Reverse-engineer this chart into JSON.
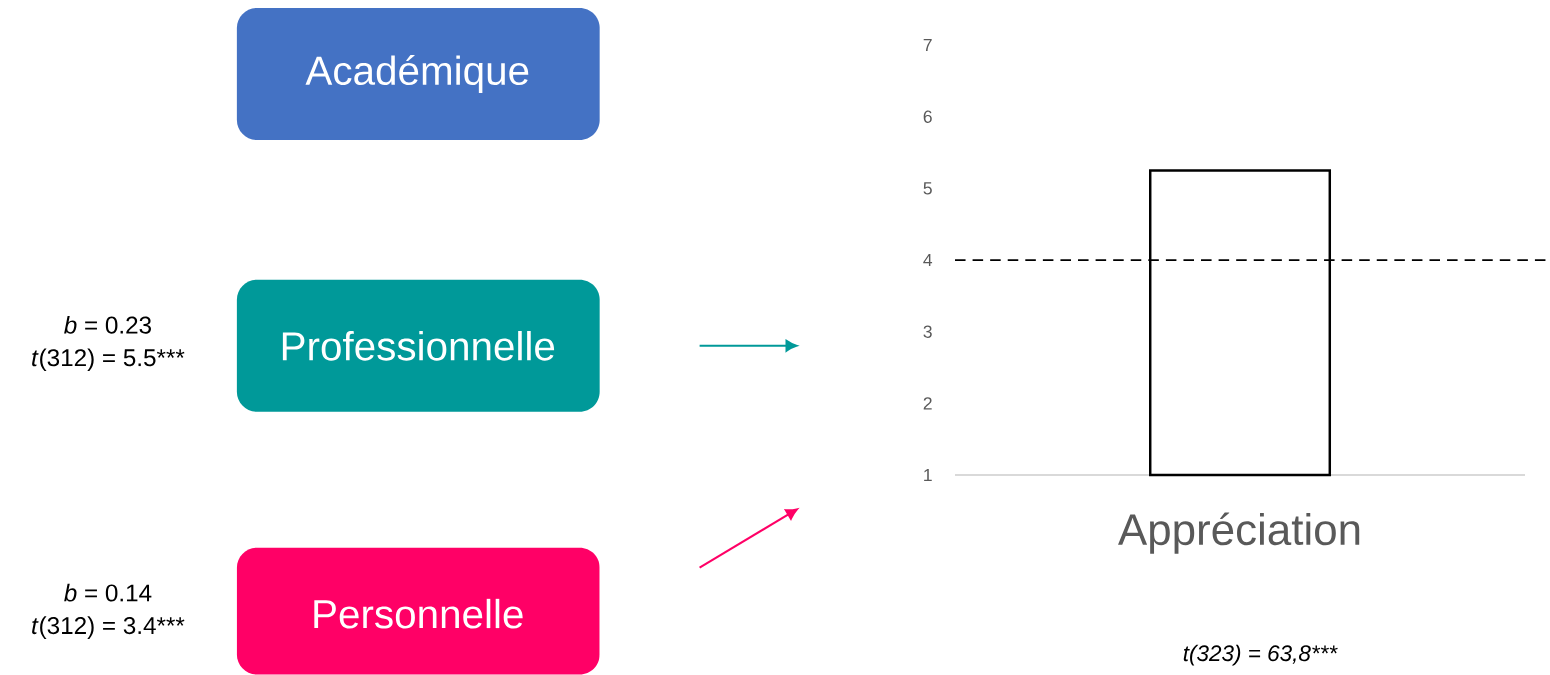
{
  "chart_data": [
    {
      "type": "other",
      "categories": [
        "Académique",
        "Professionnelle",
        "Personnelle"
      ],
      "colors": [
        "#4472c4",
        "#009999",
        "#ff0066"
      ],
      "annotations": [
        "*b* = 0.23",
        "*t*(312) = 5.5***",
        "*b* = 0.14",
        "*t*(312) = 3.4***"
      ]
    },
    {
      "type": "bar",
      "categories": [
        "Appréciation"
      ],
      "values": [
        5.25
      ],
      "color": "#ffffff",
      "ylim": [
        1,
        7
      ],
      "yticks": [
        1,
        2,
        3,
        4,
        5,
        6,
        7
      ],
      "ref_lines": [
        {
          "axis": "y",
          "value": 4,
          "line_style": "dashed"
        }
      ],
      "annotations": [
        "t(323) = 63,8***"
      ]
    }
  ]
}
